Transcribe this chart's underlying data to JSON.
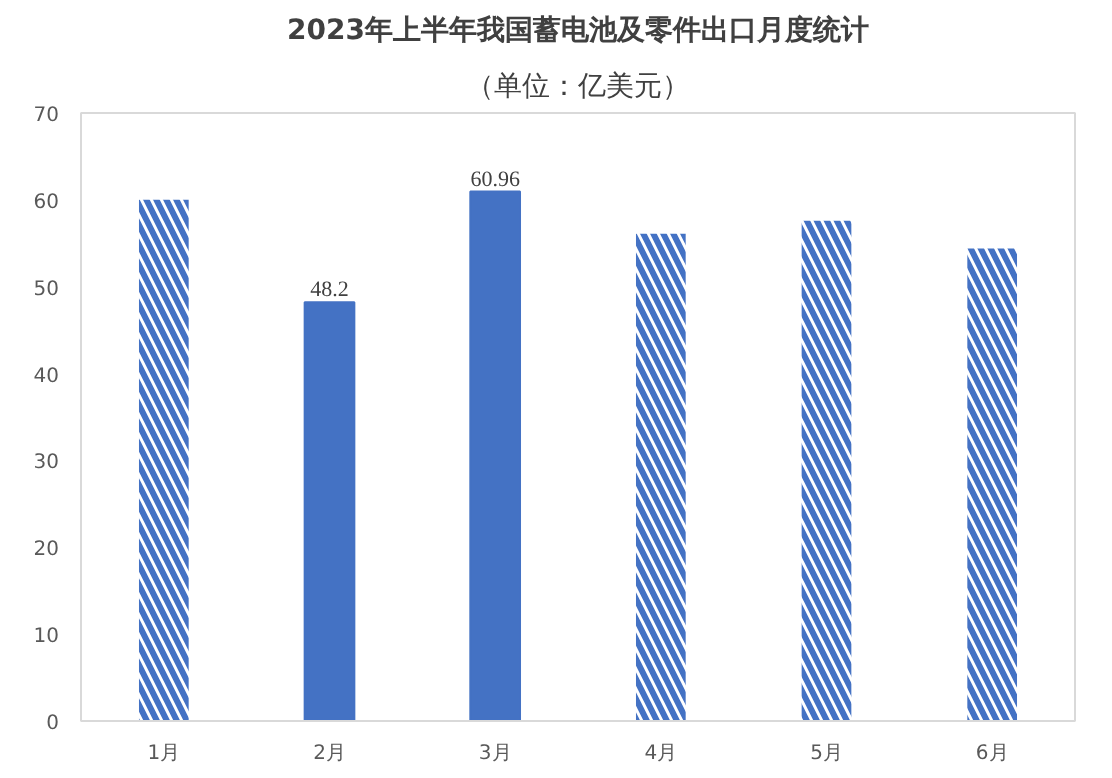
{
  "chart_data": {
    "type": "bar",
    "title": "2023年上半年我国蓄电池及零件出口月度统计",
    "subtitle": "（单位：亿美元）",
    "categories": [
      "1月",
      "2月",
      "3月",
      "4月",
      "5月",
      "6月"
    ],
    "values": [
      60,
      48.2,
      60.96,
      56.1,
      57.6,
      54.4
    ],
    "value_labels": [
      null,
      "48.2",
      "60.96",
      null,
      null,
      null
    ],
    "color": "#4472c4",
    "ylim": [
      0,
      70
    ],
    "yticks": [
      0,
      10,
      20,
      30,
      40,
      50,
      60,
      70
    ],
    "grid": false
  }
}
